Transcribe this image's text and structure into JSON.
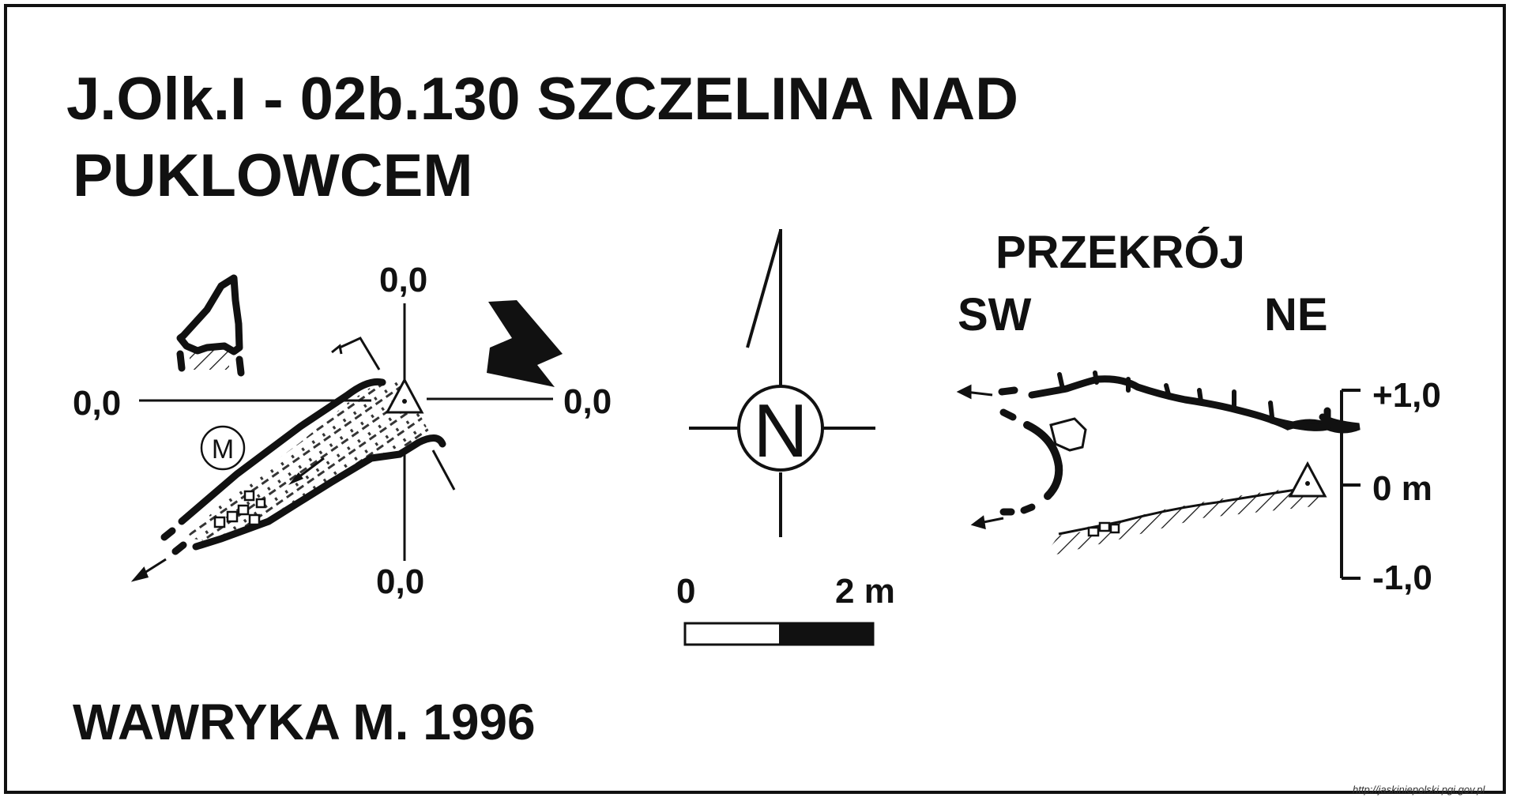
{
  "title": {
    "line1": "J.Olk.I - 02b.130  SZCZELINA  NAD",
    "line2": "PUKLOWCEM"
  },
  "plan": {
    "label_top": "0,0",
    "label_left": "0,0",
    "label_right": "0,0",
    "label_bottom": "0,0",
    "marker_m": "M"
  },
  "compass": {
    "north_label": "N"
  },
  "scale_bar": {
    "start_label": "0",
    "end_label": "2 m"
  },
  "section": {
    "title": "PRZEKRÓJ",
    "left_label": "SW",
    "right_label": "NE",
    "scale_top": "+1,0",
    "scale_mid": "0 m",
    "scale_bottom": "-1,0"
  },
  "author": "WAWRYKA M. 1996",
  "source_url": "http://jaskiniepolski.pgi.gov.pl",
  "colors": {
    "ink": "#111111",
    "background": "#ffffff"
  }
}
